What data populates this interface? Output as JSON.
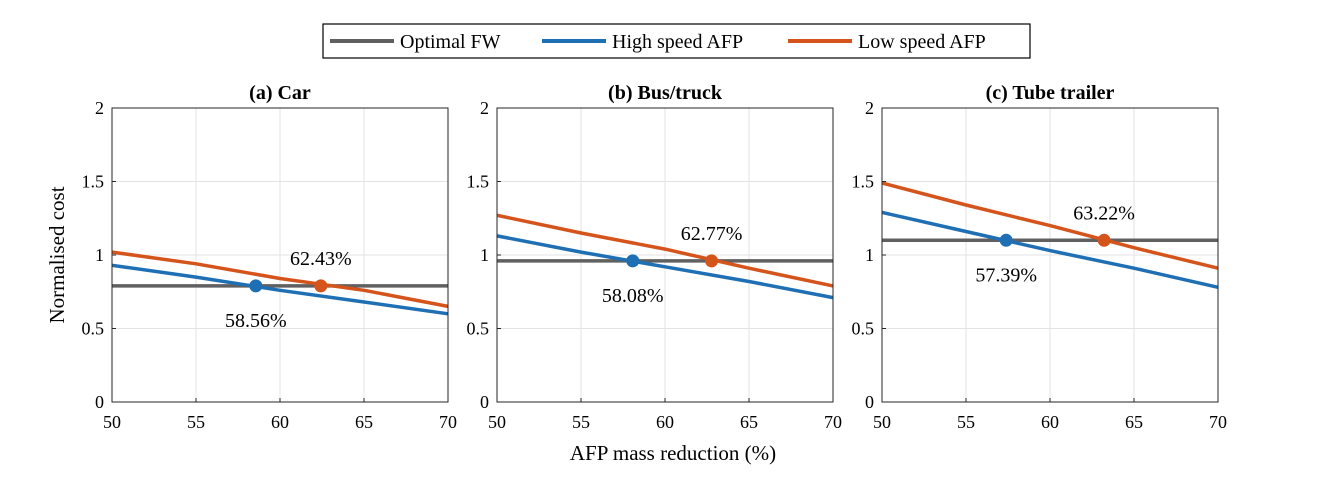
{
  "legend": {
    "entries": [
      {
        "label": "Optimal FW",
        "color": "#606060"
      },
      {
        "label": "High speed AFP",
        "color": "#1f6fb4"
      },
      {
        "label": "Low speed AFP",
        "color": "#d4541c"
      }
    ]
  },
  "xlabel": "AFP mass reduction (%)",
  "ylabel": "Normalised cost",
  "chart_data": [
    {
      "type": "line",
      "title": "(a) Car",
      "xlim": [
        50,
        70
      ],
      "ylim": [
        0,
        2
      ],
      "xticks": [
        "50",
        "55",
        "60",
        "65",
        "70"
      ],
      "yticks": [
        "0",
        "0.5",
        "1",
        "1.5",
        "2"
      ],
      "grid": true,
      "series": [
        {
          "name": "Optimal FW",
          "x": [
            50,
            70
          ],
          "y": [
            0.79,
            0.79
          ]
        },
        {
          "name": "High speed AFP",
          "x": [
            50,
            55,
            60,
            65,
            70
          ],
          "y": [
            0.93,
            0.85,
            0.76,
            0.68,
            0.6
          ]
        },
        {
          "name": "Low speed AFP",
          "x": [
            50,
            55,
            60,
            65,
            70
          ],
          "y": [
            1.02,
            0.94,
            0.84,
            0.76,
            0.65
          ]
        }
      ],
      "markers": [
        {
          "x": 58.56,
          "y": 0.79,
          "color": "#1f6fb4"
        },
        {
          "x": 62.43,
          "y": 0.79,
          "color": "#d4541c"
        }
      ],
      "annotations": [
        {
          "text": "58.56%",
          "x": 58.56,
          "y": 0.79,
          "pos": "below"
        },
        {
          "text": "62.43%",
          "x": 62.43,
          "y": 0.79,
          "pos": "above"
        }
      ]
    },
    {
      "type": "line",
      "title": "(b) Bus/truck",
      "xlim": [
        50,
        70
      ],
      "ylim": [
        0,
        2
      ],
      "xticks": [
        "50",
        "55",
        "60",
        "65",
        "70"
      ],
      "yticks": [
        "0",
        "0.5",
        "1",
        "1.5",
        "2"
      ],
      "grid": true,
      "series": [
        {
          "name": "Optimal FW",
          "x": [
            50,
            70
          ],
          "y": [
            0.96,
            0.96
          ]
        },
        {
          "name": "High speed AFP",
          "x": [
            50,
            55,
            60,
            65,
            70
          ],
          "y": [
            1.13,
            1.02,
            0.92,
            0.82,
            0.71
          ]
        },
        {
          "name": "Low speed AFP",
          "x": [
            50,
            55,
            60,
            65,
            70
          ],
          "y": [
            1.27,
            1.15,
            1.04,
            0.91,
            0.79
          ]
        }
      ],
      "markers": [
        {
          "x": 58.08,
          "y": 0.96,
          "color": "#1f6fb4"
        },
        {
          "x": 62.77,
          "y": 0.96,
          "color": "#d4541c"
        }
      ],
      "annotations": [
        {
          "text": "58.08%",
          "x": 58.08,
          "y": 0.96,
          "pos": "below"
        },
        {
          "text": "62.77%",
          "x": 62.77,
          "y": 0.96,
          "pos": "above"
        }
      ]
    },
    {
      "type": "line",
      "title": "(c) Tube trailer",
      "xlim": [
        50,
        70
      ],
      "ylim": [
        0,
        2
      ],
      "xticks": [
        "50",
        "55",
        "60",
        "65",
        "70"
      ],
      "yticks": [
        "0",
        "0.5",
        "1",
        "1.5",
        "2"
      ],
      "grid": true,
      "series": [
        {
          "name": "Optimal FW",
          "x": [
            50,
            70
          ],
          "y": [
            1.1,
            1.1
          ]
        },
        {
          "name": "High speed AFP",
          "x": [
            50,
            55,
            60,
            65,
            70
          ],
          "y": [
            1.29,
            1.16,
            1.03,
            0.91,
            0.78
          ]
        },
        {
          "name": "Low speed AFP",
          "x": [
            50,
            55,
            60,
            65,
            70
          ],
          "y": [
            1.49,
            1.34,
            1.2,
            1.05,
            0.91
          ]
        }
      ],
      "markers": [
        {
          "x": 57.39,
          "y": 1.1,
          "color": "#1f6fb4"
        },
        {
          "x": 63.22,
          "y": 1.1,
          "color": "#d4541c"
        }
      ],
      "annotations": [
        {
          "text": "57.39%",
          "x": 57.39,
          "y": 1.1,
          "pos": "below"
        },
        {
          "text": "63.22%",
          "x": 63.22,
          "y": 1.1,
          "pos": "above"
        }
      ]
    }
  ]
}
